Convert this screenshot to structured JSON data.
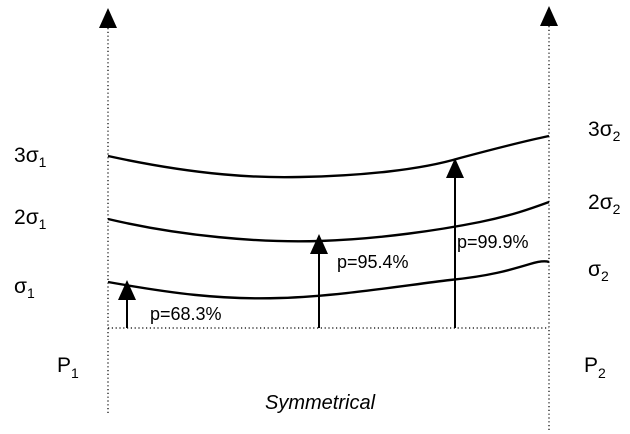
{
  "left_axis": {
    "label_main": "P",
    "label_sub": "1",
    "levels": [
      {
        "prefix": "3",
        "symbol": "σ",
        "sub": "1"
      },
      {
        "prefix": "2",
        "symbol": "σ",
        "sub": "1"
      },
      {
        "prefix": "",
        "symbol": "σ",
        "sub": "1"
      }
    ]
  },
  "right_axis": {
    "label_main": "P",
    "label_sub": "2",
    "levels": [
      {
        "prefix": "3",
        "symbol": "σ",
        "sub": "2"
      },
      {
        "prefix": "2",
        "symbol": "σ",
        "sub": "2"
      },
      {
        "prefix": "",
        "symbol": "σ",
        "sub": "2"
      }
    ]
  },
  "probabilities": [
    {
      "label": "p=68.3%"
    },
    {
      "label": "p=95.4%"
    },
    {
      "label": "p=99.9%"
    }
  ],
  "caption": "Symmetrical"
}
